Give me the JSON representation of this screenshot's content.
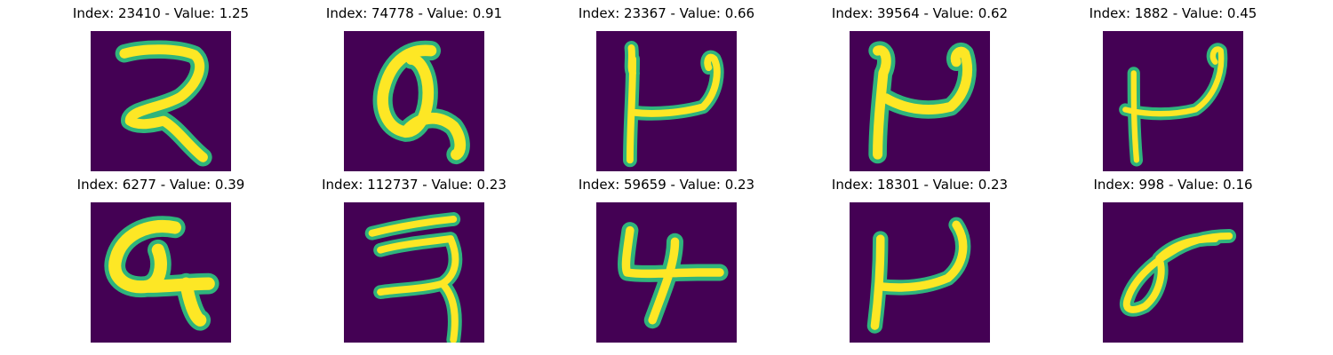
{
  "colors": {
    "background": "#440154",
    "stroke_core": "#fde725",
    "stroke_edge": "#2fb47c",
    "stroke_mid": "#21918c"
  },
  "panels": [
    {
      "title": "Index: 23410 - Value: 1.25"
    },
    {
      "title": "Index: 74778 - Value: 0.91"
    },
    {
      "title": "Index: 23367 - Value: 0.66"
    },
    {
      "title": "Index: 39564 - Value: 0.62"
    },
    {
      "title": "Index: 1882 - Value: 0.45"
    },
    {
      "title": "Index: 6277 - Value: 0.39"
    },
    {
      "title": "Index: 112737 - Value: 0.23"
    },
    {
      "title": "Index: 59659 - Value: 0.23"
    },
    {
      "title": "Index: 18301 - Value: 0.23"
    },
    {
      "title": "Index: 998 - Value: 0.16"
    }
  ]
}
